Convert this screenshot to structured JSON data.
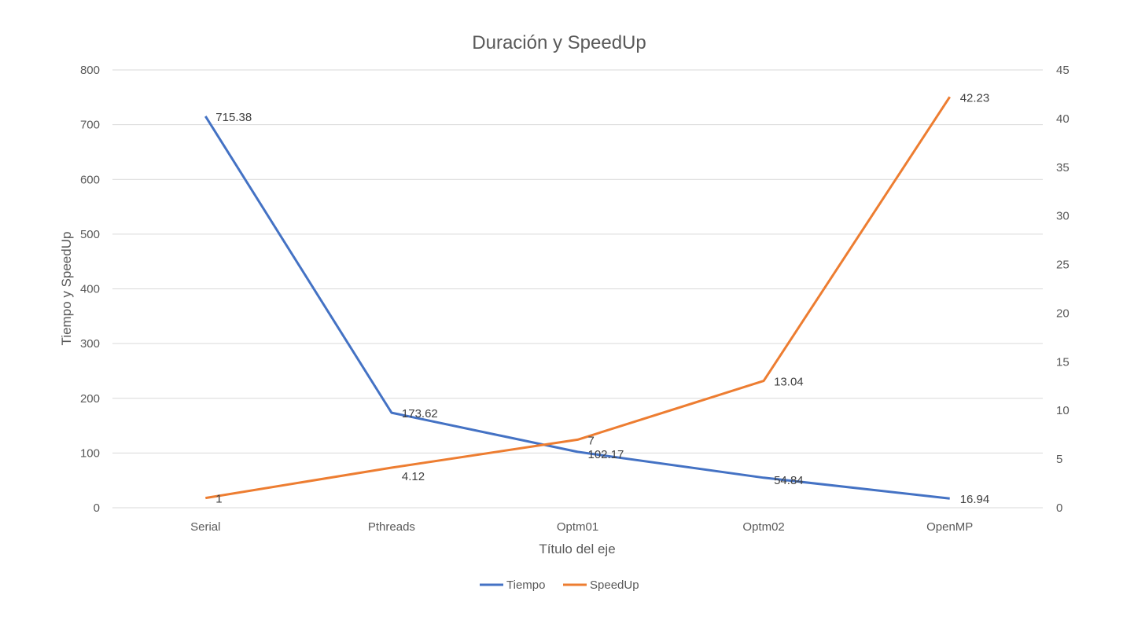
{
  "chart_data": {
    "type": "line",
    "title": "Duración y SpeedUp",
    "xlabel": "Título del eje",
    "ylabel": "Tiempo y SpeedUp",
    "categories": [
      "Serial",
      "Pthreads",
      "Optm01",
      "Optm02",
      "OpenMP"
    ],
    "y_left": {
      "min": 0,
      "max": 800,
      "step": 100,
      "ticks": [
        "0",
        "100",
        "200",
        "300",
        "400",
        "500",
        "600",
        "700",
        "800"
      ]
    },
    "y_right": {
      "min": 0,
      "max": 45,
      "step": 5,
      "ticks": [
        "0",
        "5",
        "10",
        "15",
        "20",
        "25",
        "30",
        "35",
        "40",
        "45"
      ]
    },
    "series": [
      {
        "name": "Tiempo",
        "axis": "left",
        "color": "#4472C4",
        "values": [
          715.38,
          173.62,
          102.17,
          54.84,
          16.94
        ],
        "labels": [
          "715.38",
          "173.62",
          "102.17",
          "54.84",
          "16.94"
        ]
      },
      {
        "name": "SpeedUp",
        "axis": "right",
        "color": "#ED7D31",
        "values": [
          1,
          4.12,
          7,
          13.04,
          42.23
        ],
        "labels": [
          "1",
          "4.12",
          "7",
          "13.04",
          "42.23"
        ]
      }
    ],
    "grid": true,
    "legend_position": "bottom"
  }
}
